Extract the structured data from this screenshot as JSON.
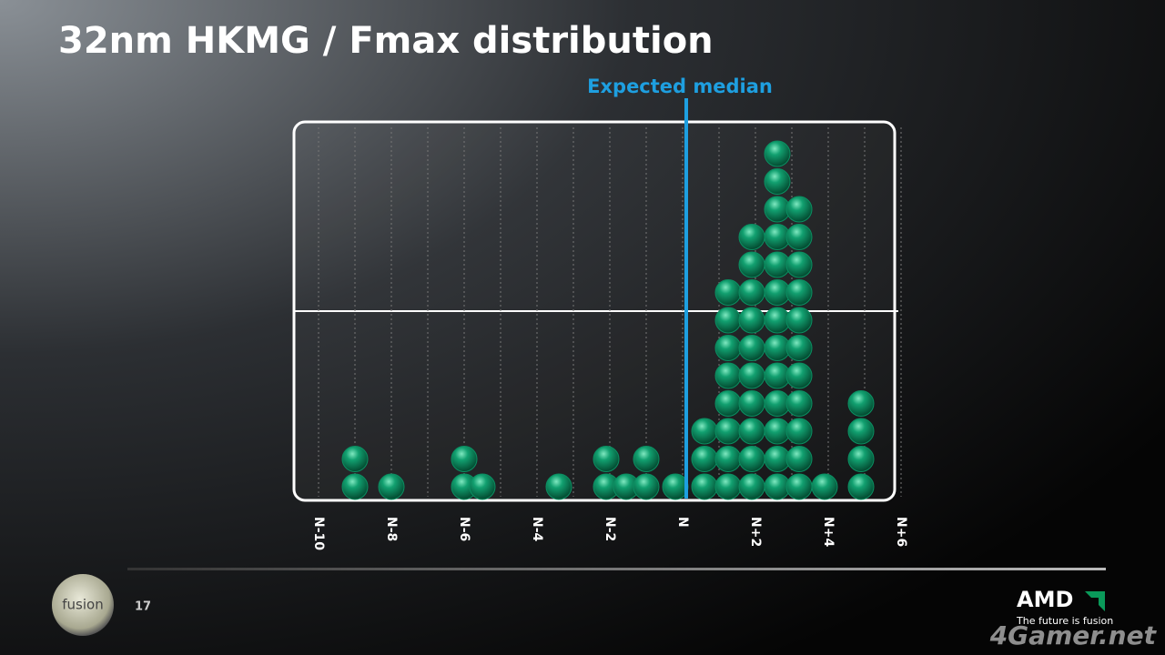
{
  "slide": {
    "title": "32nm HKMG / Fmax distribution",
    "page_number": "17",
    "logo": "fusion",
    "brand": "AMD",
    "tagline": "The future is fusion",
    "watermark": "4Gamer.net"
  },
  "chart_data": {
    "type": "dot",
    "x": [
      -9,
      -8,
      -6,
      -5.5,
      -3.4,
      -2.1,
      -1.55,
      -1,
      -0.2,
      0.6,
      1.25,
      1.9,
      2.6,
      3.2,
      3.9,
      4.9
    ],
    "values": [
      2,
      1,
      2,
      1,
      1,
      2,
      1,
      2,
      1,
      3,
      8,
      10,
      13,
      11,
      1,
      4
    ],
    "color": "#0b8f62",
    "xlim": [
      -10,
      6
    ],
    "xticks": [
      {
        "value": -10,
        "label": "N-10"
      },
      {
        "value": -8,
        "label": "N-8"
      },
      {
        "value": -6,
        "label": "N-6"
      },
      {
        "value": -4,
        "label": "N-4"
      },
      {
        "value": -2,
        "label": "N-2"
      },
      {
        "value": 0,
        "label": "N"
      },
      {
        "value": 2,
        "label": "N+2"
      },
      {
        "value": 4,
        "label": "N+4"
      },
      {
        "value": 6,
        "label": "N+6"
      }
    ],
    "reference_line": {
      "value": 0,
      "label": "Expected median",
      "color": "#1e9fe0"
    },
    "grid": true
  }
}
